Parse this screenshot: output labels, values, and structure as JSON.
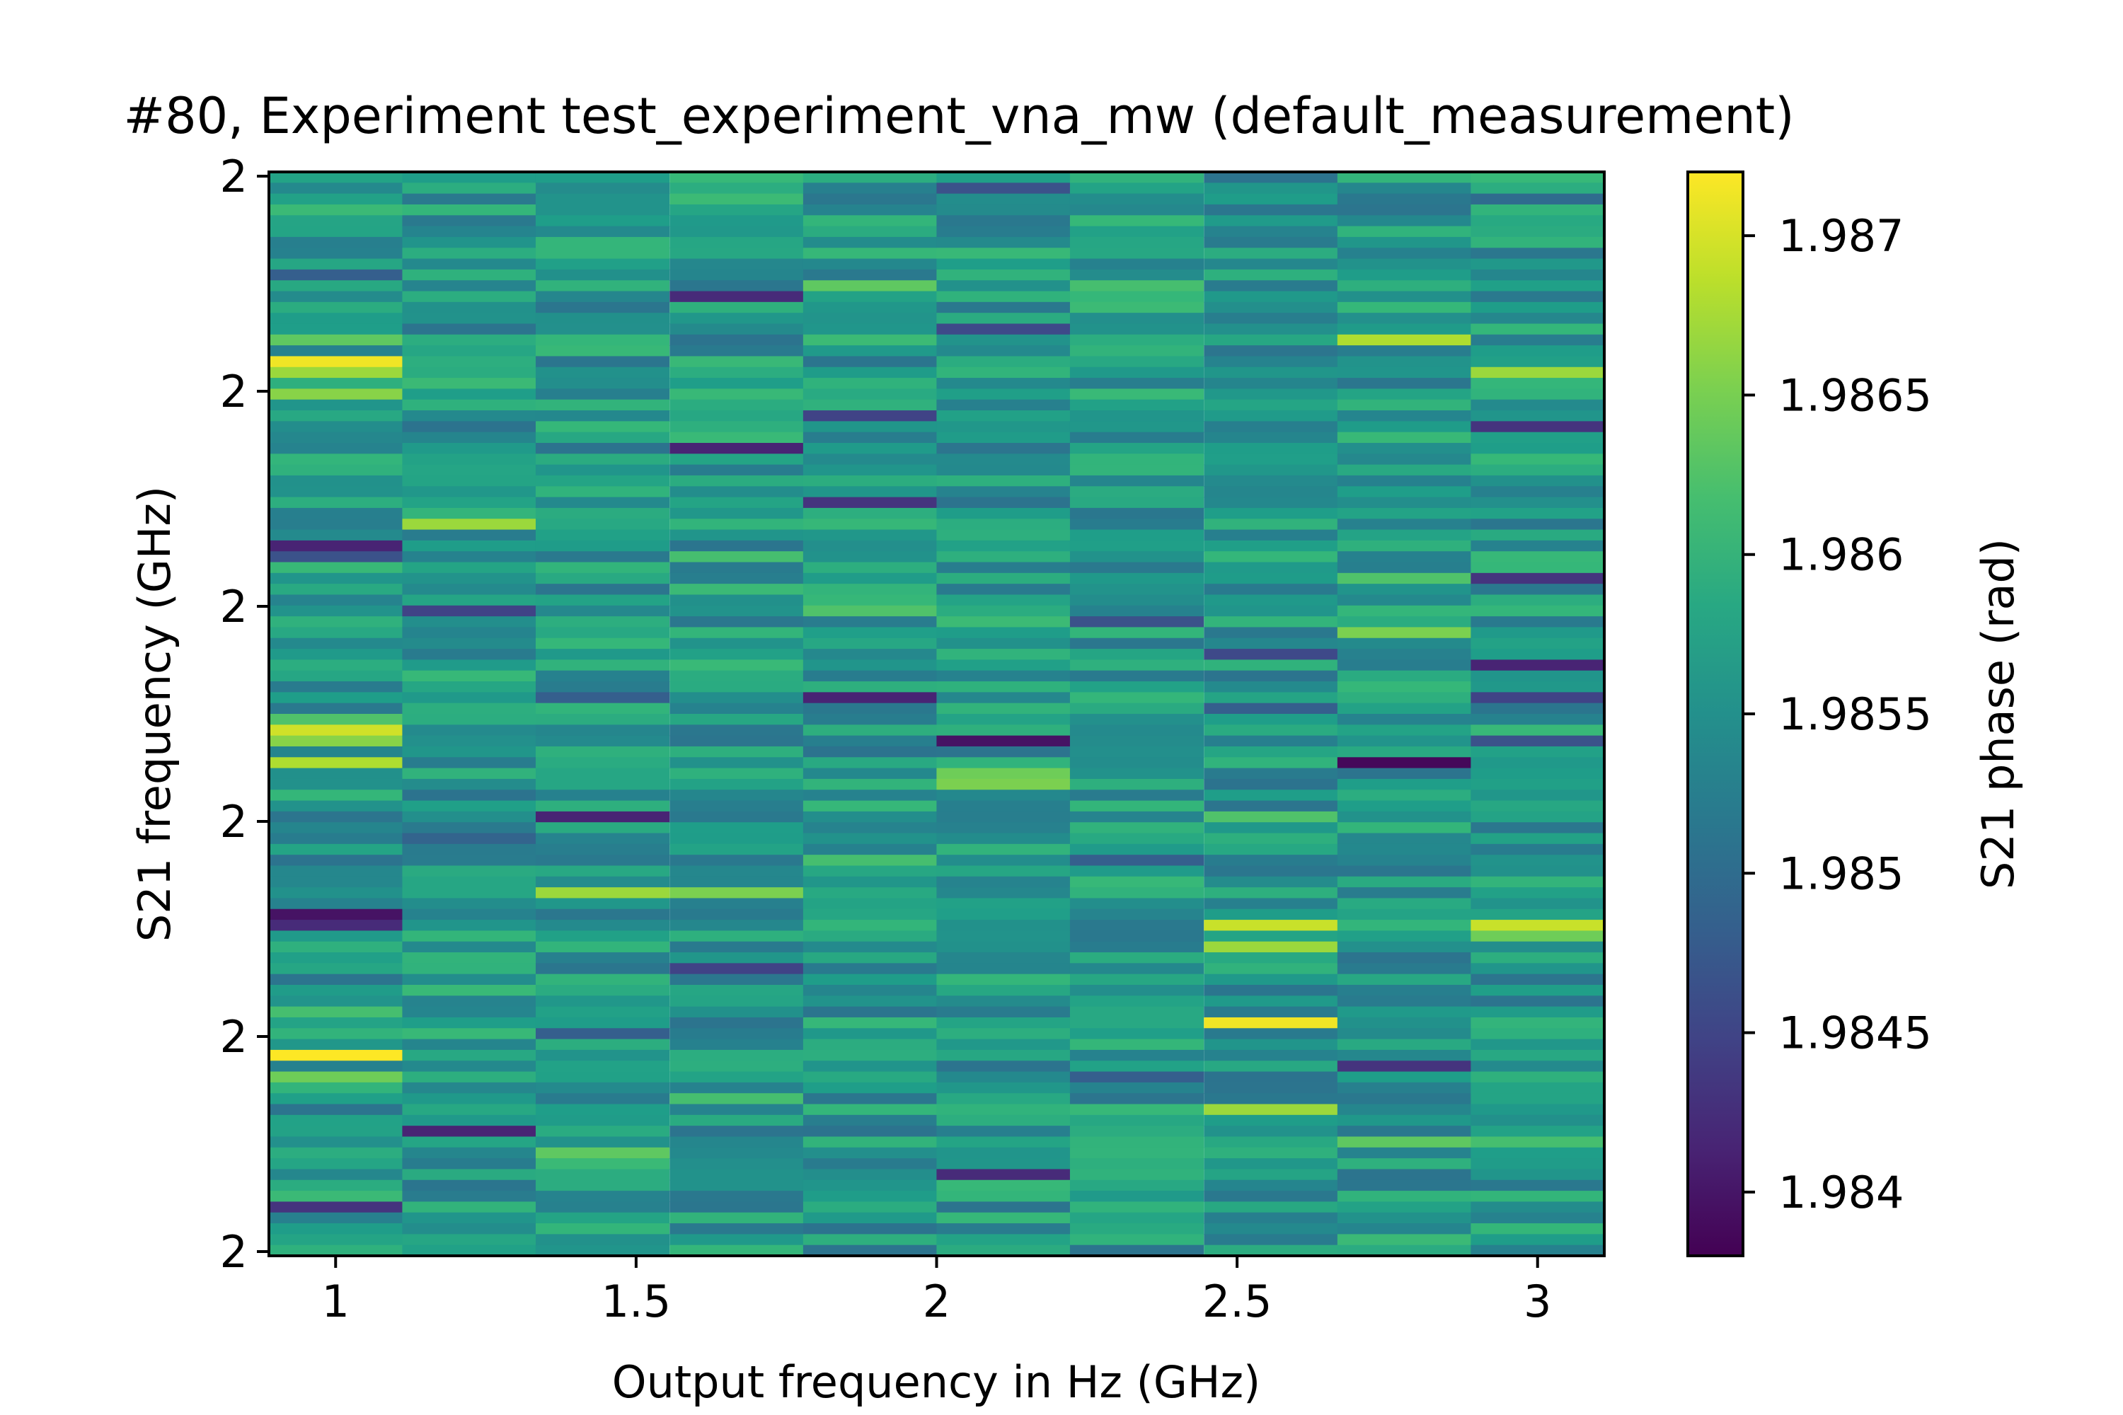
{
  "chart_data": {
    "type": "heatmap",
    "title": "#80, Experiment test_experiment_vna_mw (default_measurement)",
    "xlabel": "Output frequency in Hz (GHz)",
    "ylabel": "S21 frequency (GHz)",
    "colorbar_label": "S21 phase (rad)",
    "colormap": "viridis",
    "x_centers": [
      1.0,
      1.222,
      1.444,
      1.667,
      1.889,
      2.111,
      2.333,
      2.556,
      2.778,
      3.0
    ],
    "xlim": [
      0.889,
      3.111
    ],
    "x_ticks": [
      {
        "value": 1,
        "label": "1"
      },
      {
        "value": 1.5,
        "label": "1.5"
      },
      {
        "value": 2,
        "label": "2"
      },
      {
        "value": 2.5,
        "label": "2.5"
      },
      {
        "value": 3,
        "label": "3"
      }
    ],
    "y_tick_labels": [
      "2",
      "2",
      "2",
      "2",
      "2",
      "2"
    ],
    "n_rows": 100,
    "vmin": 1.9838,
    "vmax": 1.9872,
    "colorbar_ticks": [
      {
        "value": 1.984,
        "label": "1.984"
      },
      {
        "value": 1.9845,
        "label": "1.9845"
      },
      {
        "value": 1.985,
        "label": "1.985"
      },
      {
        "value": 1.9855,
        "label": "1.9855"
      },
      {
        "value": 1.986,
        "label": "1.986"
      },
      {
        "value": 1.9865,
        "label": "1.9865"
      },
      {
        "value": 1.987,
        "label": "1.987"
      }
    ],
    "columns": [
      {
        "x": 1.0,
        "features": [
          [
            0.07,
            0.44
          ],
          [
            0.09,
            0.3
          ],
          [
            0.13,
            0.55
          ],
          [
            0.15,
            0.75
          ],
          [
            0.17,
            0.98
          ],
          [
            0.18,
            0.85
          ],
          [
            0.2,
            0.82
          ],
          [
            0.25,
            0.45
          ],
          [
            0.34,
            0.1
          ],
          [
            0.35,
            0.25
          ],
          [
            0.42,
            0.6
          ],
          [
            0.45,
            0.62
          ],
          [
            0.5,
            0.72
          ],
          [
            0.52,
            0.93
          ],
          [
            0.53,
            0.82
          ],
          [
            0.55,
            0.88
          ],
          [
            0.69,
            0.05
          ],
          [
            0.7,
            0.12
          ],
          [
            0.78,
            0.7
          ],
          [
            0.8,
            0.65
          ],
          [
            0.82,
            1.0
          ],
          [
            0.84,
            0.78
          ],
          [
            0.9,
            0.5
          ],
          [
            0.96,
            0.15
          ]
        ]
      },
      {
        "x": 1.222,
        "features": [
          [
            0.01,
            0.62
          ],
          [
            0.15,
            0.62
          ],
          [
            0.32,
            0.85
          ],
          [
            0.4,
            0.2
          ],
          [
            0.53,
            0.5
          ],
          [
            0.62,
            0.32
          ],
          [
            0.73,
            0.65
          ],
          [
            0.89,
            0.1
          ],
          [
            0.96,
            0.65
          ]
        ]
      },
      {
        "x": 1.444,
        "features": [
          [
            0.25,
            0.38
          ],
          [
            0.32,
            0.6
          ],
          [
            0.48,
            0.3
          ],
          [
            0.6,
            0.1
          ],
          [
            0.65,
            0.6
          ],
          [
            0.67,
            0.85
          ],
          [
            0.75,
            0.65
          ],
          [
            0.8,
            0.3
          ],
          [
            0.91,
            0.75
          ]
        ]
      },
      {
        "x": 1.667,
        "features": [
          [
            0.01,
            0.62
          ],
          [
            0.02,
            0.68
          ],
          [
            0.11,
            0.12
          ],
          [
            0.25,
            0.1
          ],
          [
            0.35,
            0.7
          ],
          [
            0.67,
            0.8
          ],
          [
            0.74,
            0.2
          ],
          [
            0.82,
            0.62
          ],
          [
            0.86,
            0.7
          ]
        ]
      },
      {
        "x": 1.889,
        "features": [
          [
            0.1,
            0.75
          ],
          [
            0.15,
            0.68
          ],
          [
            0.22,
            0.2
          ],
          [
            0.3,
            0.15
          ],
          [
            0.4,
            0.72
          ],
          [
            0.48,
            0.1
          ],
          [
            0.64,
            0.7
          ],
          [
            0.75,
            0.55
          ],
          [
            0.9,
            0.65
          ]
        ]
      },
      {
        "x": 2.111,
        "features": [
          [
            0.01,
            0.25
          ],
          [
            0.14,
            0.22
          ],
          [
            0.3,
            0.38
          ],
          [
            0.41,
            0.68
          ],
          [
            0.53,
            0.05
          ],
          [
            0.56,
            0.78
          ],
          [
            0.57,
            0.8
          ],
          [
            0.86,
            0.6
          ],
          [
            0.93,
            0.12
          ]
        ]
      },
      {
        "x": 2.333,
        "features": [
          [
            0.1,
            0.7
          ],
          [
            0.12,
            0.68
          ],
          [
            0.15,
            0.62
          ],
          [
            0.32,
            0.42
          ],
          [
            0.41,
            0.25
          ],
          [
            0.5,
            0.5
          ],
          [
            0.64,
            0.3
          ],
          [
            0.78,
            0.6
          ],
          [
            0.84,
            0.3
          ],
          [
            0.9,
            0.65
          ]
        ]
      },
      {
        "x": 2.556,
        "features": [
          [
            0.02,
            0.55
          ],
          [
            0.4,
            0.52
          ],
          [
            0.44,
            0.22
          ],
          [
            0.49,
            0.3
          ],
          [
            0.57,
            0.38
          ],
          [
            0.6,
            0.72
          ],
          [
            0.7,
            0.92
          ],
          [
            0.72,
            0.85
          ],
          [
            0.79,
            0.98
          ],
          [
            0.87,
            0.85
          ]
        ]
      },
      {
        "x": 2.778,
        "features": [
          [
            0.09,
            0.55
          ],
          [
            0.15,
            0.88
          ],
          [
            0.37,
            0.72
          ],
          [
            0.42,
            0.8
          ],
          [
            0.55,
            0.02
          ],
          [
            0.64,
            0.45
          ],
          [
            0.75,
            0.6
          ],
          [
            0.83,
            0.15
          ],
          [
            0.9,
            0.75
          ]
        ]
      },
      {
        "x": 3.0,
        "features": [
          [
            0.01,
            0.62
          ],
          [
            0.02,
            0.35
          ],
          [
            0.06,
            0.65
          ],
          [
            0.18,
            0.85
          ],
          [
            0.23,
            0.15
          ],
          [
            0.37,
            0.15
          ],
          [
            0.45,
            0.1
          ],
          [
            0.48,
            0.2
          ],
          [
            0.53,
            0.25
          ],
          [
            0.56,
            0.55
          ],
          [
            0.63,
            0.42
          ],
          [
            0.7,
            0.92
          ],
          [
            0.71,
            0.78
          ],
          [
            0.82,
            0.6
          ],
          [
            0.86,
            0.58
          ],
          [
            0.9,
            0.7
          ]
        ]
      }
    ]
  }
}
